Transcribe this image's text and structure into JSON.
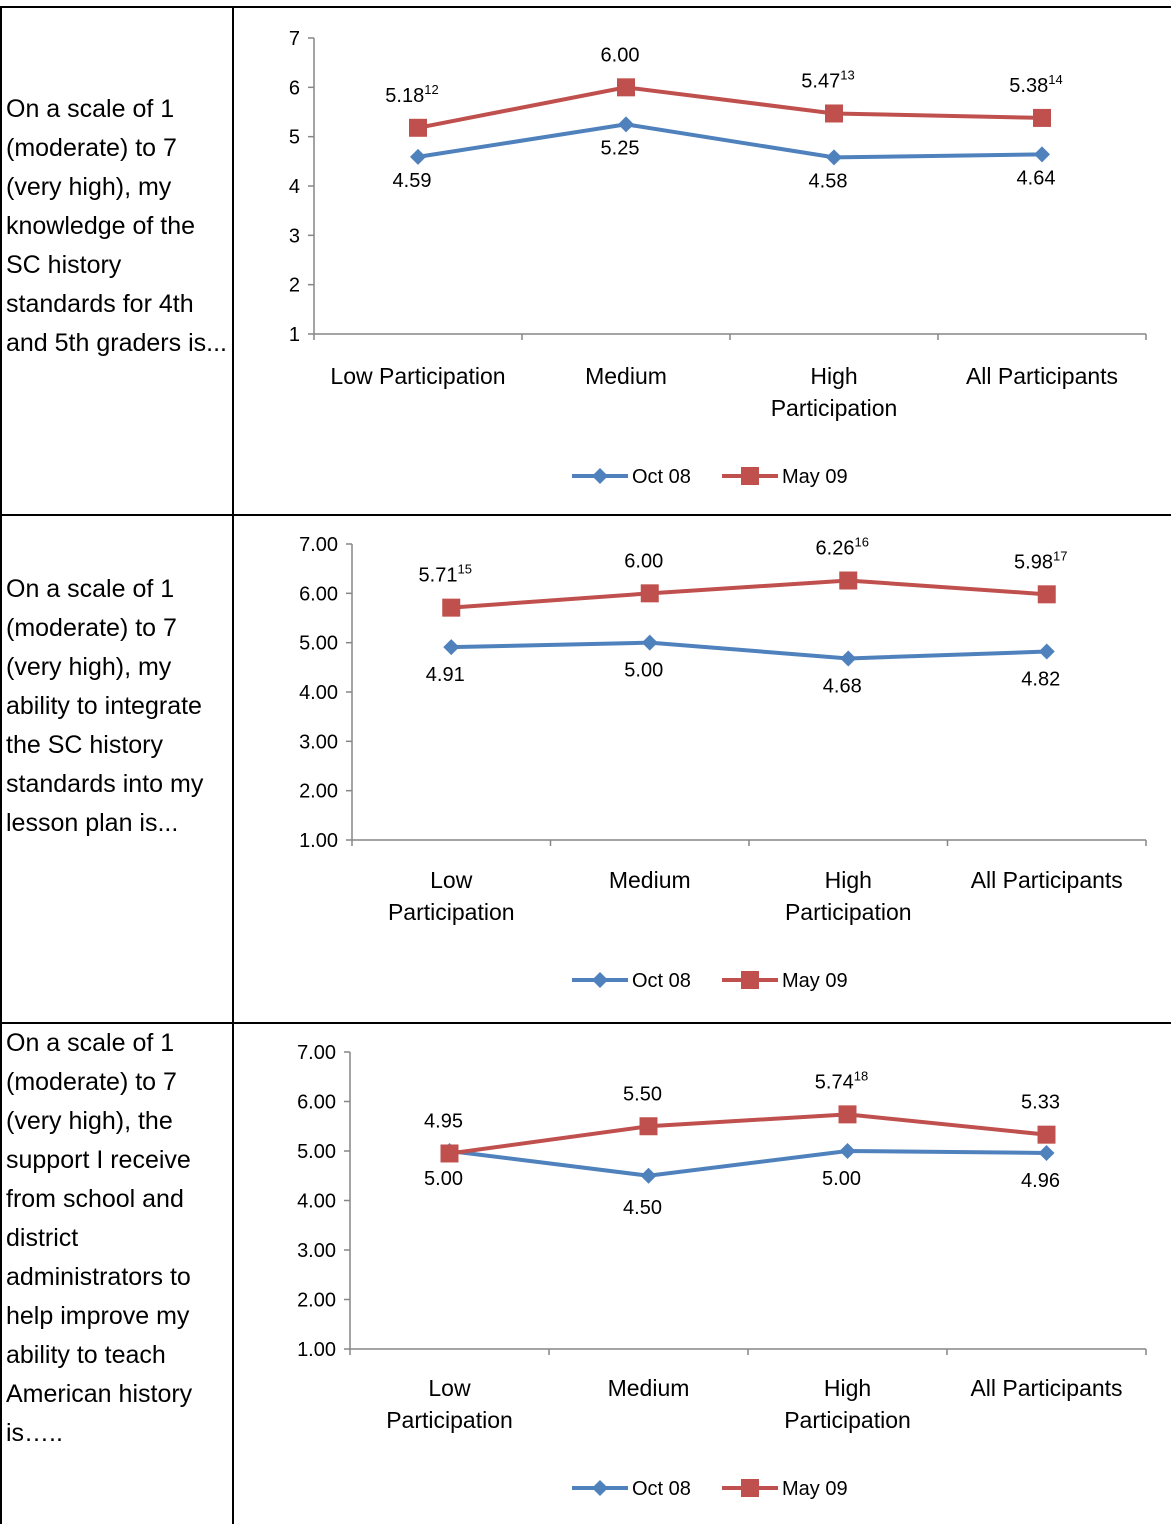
{
  "rows": [
    {
      "question": "On a scale of 1 (moderate) to 7 (very high), my knowledge of the SC history standards for 4th and 5th graders is...",
      "chart_data": {
        "type": "line",
        "categories": [
          [
            "Low Participation"
          ],
          [
            "Medium"
          ],
          [
            "High",
            "Participation"
          ],
          [
            "All Participants"
          ]
        ],
        "ylim": [
          1,
          7
        ],
        "yticks": [
          "1",
          "2",
          "3",
          "4",
          "5",
          "6",
          "7"
        ],
        "grid": false,
        "legend": "bottom",
        "series": [
          {
            "name": "Oct 08",
            "color": "#4f81bd",
            "marker": "diamond",
            "values": [
              4.59,
              5.25,
              4.58,
              4.64
            ],
            "labels": [
              "4.59",
              "5.25",
              "4.58",
              "4.64"
            ],
            "sup": [
              "",
              "",
              "",
              ""
            ]
          },
          {
            "name": "May 09",
            "color": "#c0504d",
            "marker": "square",
            "values": [
              5.18,
              6.0,
              5.47,
              5.38
            ],
            "labels": [
              "5.18",
              "6.00",
              "5.47",
              "5.38"
            ],
            "sup": [
              "12",
              "",
              "13",
              "14"
            ]
          }
        ]
      }
    },
    {
      "question": "On a scale of 1 (moderate) to 7 (very high), my ability to integrate the SC history standards into my lesson plan is...",
      "chart_data": {
        "type": "line",
        "categories": [
          [
            "Low",
            "Participation"
          ],
          [
            "Medium"
          ],
          [
            "High",
            "Participation"
          ],
          [
            "All Participants"
          ]
        ],
        "ylim": [
          1,
          7
        ],
        "yticks": [
          "1.00",
          "2.00",
          "3.00",
          "4.00",
          "5.00",
          "6.00",
          "7.00"
        ],
        "grid": false,
        "legend": "bottom",
        "series": [
          {
            "name": "Oct 08",
            "color": "#4f81bd",
            "marker": "diamond",
            "values": [
              4.91,
              5.0,
              4.68,
              4.82
            ],
            "labels": [
              "4.91",
              "5.00",
              "4.68",
              "4.82"
            ],
            "sup": [
              "",
              "",
              "",
              ""
            ]
          },
          {
            "name": "May 09",
            "color": "#c0504d",
            "marker": "square",
            "values": [
              5.71,
              6.0,
              6.26,
              5.98
            ],
            "labels": [
              "5.71",
              "6.00",
              "6.26",
              "5.98"
            ],
            "sup": [
              "15",
              "",
              "16",
              "17"
            ]
          }
        ]
      }
    },
    {
      "question": "On a scale of 1 (moderate) to 7 (very high), the support I receive from school and district administrators to help improve my ability to teach American history is…..",
      "chart_data": {
        "type": "line",
        "categories": [
          [
            "Low",
            "Participation"
          ],
          [
            "Medium"
          ],
          [
            "High",
            "Participation"
          ],
          [
            "All Participants"
          ]
        ],
        "ylim": [
          1,
          7
        ],
        "yticks": [
          "1.00",
          "2.00",
          "3.00",
          "4.00",
          "5.00",
          "6.00",
          "7.00"
        ],
        "grid": false,
        "legend": "bottom",
        "series": [
          {
            "name": "Oct 08",
            "color": "#4f81bd",
            "marker": "diamond",
            "values": [
              5.0,
              4.5,
              5.0,
              4.96
            ],
            "labels": [
              "5.00",
              "4.50",
              "5.00",
              "4.96"
            ],
            "sup": [
              "",
              "",
              "",
              ""
            ]
          },
          {
            "name": "May 09",
            "color": "#c0504d",
            "marker": "square",
            "values": [
              4.95,
              5.5,
              5.74,
              5.33
            ],
            "labels": [
              "4.95",
              "5.50",
              "5.74",
              "5.33"
            ],
            "sup": [
              "",
              "",
              "18",
              ""
            ]
          }
        ]
      }
    }
  ]
}
